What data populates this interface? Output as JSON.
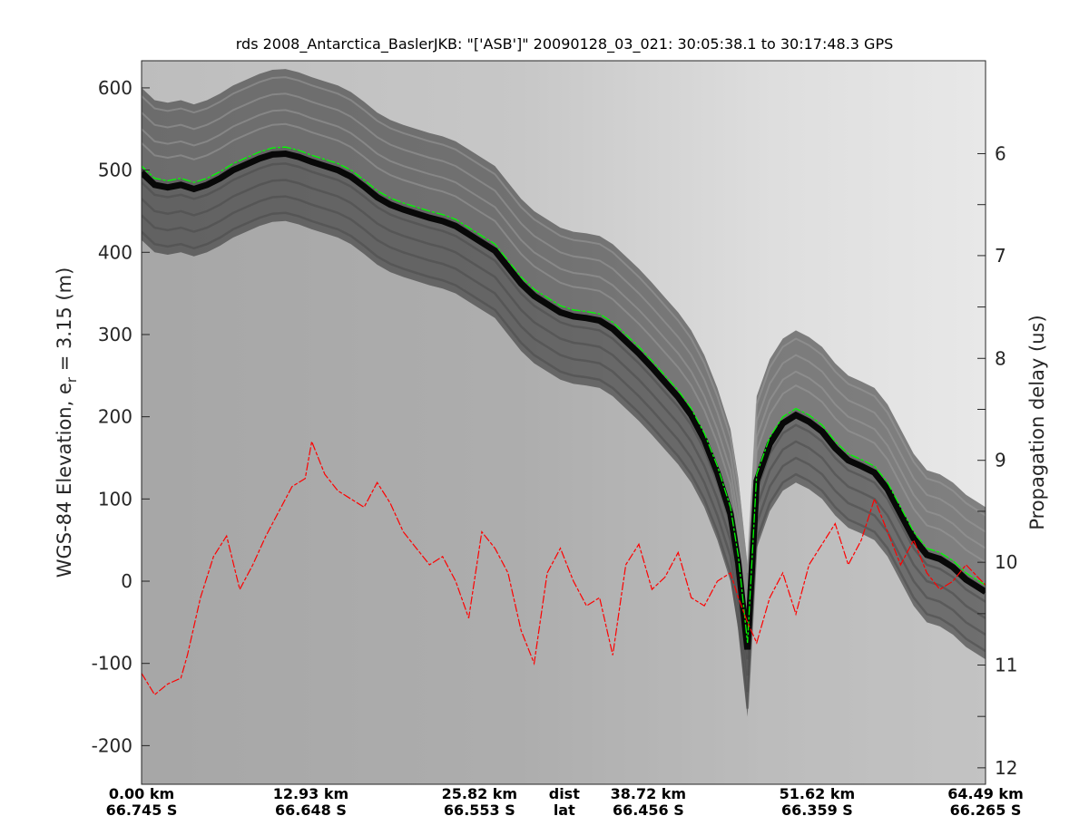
{
  "chart_data": {
    "type": "line",
    "title": "rds 2008_Antarctica_BaslerJKB: \"['ASB']\"  20090128_03_021: 30:05:38.1 to 30:17:48.3 GPS",
    "ylabel_left": "WGS-84 Elevation, e",
    "ylabel_left_sub": "r",
    "ylabel_left_tail": " = 3.15 (m)",
    "ylabel_right": "Propagation delay (us)",
    "xlim_km": [
      0,
      64.49
    ],
    "ylim": [
      -247,
      633
    ],
    "right_axis_ticks": [
      "6",
      "7",
      "8",
      "9",
      "10",
      "11",
      "12"
    ],
    "right_axis_elev": [
      520,
      396,
      271,
      147,
      23,
      -102,
      -227
    ],
    "left_axis_ticks": [
      600,
      500,
      400,
      300,
      200,
      100,
      0,
      -100,
      -200
    ],
    "bottom_ticks": [
      {
        "km": 0,
        "dist": "0.00 km",
        "lat": "66.745 S"
      },
      {
        "km": 12.93,
        "dist": "12.93 km",
        "lat": "66.648 S"
      },
      {
        "km": 25.82,
        "dist": "25.82 km",
        "lat": "66.553 S"
      },
      {
        "km": 38.72,
        "dist": "38.72 km",
        "lat": "66.456 S"
      },
      {
        "km": 51.62,
        "dist": "51.62 km",
        "lat": "66.359 S"
      },
      {
        "km": 64.49,
        "dist": "64.49 km",
        "lat": "66.265 S"
      }
    ],
    "bottom_row_labels": {
      "km": 32.3,
      "dist": "dist",
      "lat": "lat"
    },
    "colors": {
      "surface": "#00ff00",
      "bed": "#ff0000",
      "axes": "#262626"
    },
    "series": [
      {
        "id": "surface",
        "x": [
          0,
          1.0,
          2.0,
          3.0,
          4.0,
          5.0,
          6.0,
          7.0,
          8.0,
          9.0,
          10.0,
          11.0,
          12.0,
          13.0,
          14.0,
          15.0,
          16.0,
          17.0,
          18.0,
          19.0,
          20.0,
          21.0,
          22.0,
          23.0,
          24.0,
          25.0,
          26.0,
          27.0,
          28.0,
          29.0,
          30.0,
          31.0,
          32.0,
          33.0,
          34.0,
          35.0,
          36.0,
          37.0,
          38.0,
          39.0,
          40.0,
          41.0,
          42.0,
          43.0,
          44.0,
          45.0,
          45.6,
          46.3,
          47.0,
          48.0,
          49.0,
          50.0,
          51.0,
          52.0,
          53.0,
          54.0,
          55.0,
          56.0,
          57.0,
          58.0,
          59.0,
          60.0,
          61.0,
          62.0,
          63.0,
          64.49
        ],
        "y": [
          505,
          490,
          487,
          490,
          485,
          490,
          498,
          508,
          515,
          522,
          527,
          528,
          524,
          518,
          513,
          508,
          500,
          488,
          475,
          466,
          460,
          455,
          450,
          446,
          440,
          430,
          420,
          410,
          390,
          370,
          355,
          345,
          335,
          330,
          328,
          325,
          315,
          300,
          285,
          268,
          250,
          232,
          210,
          180,
          140,
          90,
          30,
          -75,
          130,
          175,
          200,
          210,
          202,
          190,
          170,
          155,
          148,
          140,
          120,
          90,
          60,
          40,
          35,
          25,
          10,
          -5
        ]
      },
      {
        "id": "bed",
        "x": [
          0,
          1.0,
          2.0,
          3.0,
          3.5,
          4.5,
          5.5,
          6.5,
          7.5,
          8.5,
          9.5,
          10.5,
          11.5,
          12.5,
          13.0,
          14.0,
          15.0,
          16.0,
          17.0,
          18.0,
          19.0,
          20.0,
          21.0,
          22.0,
          23.0,
          24.0,
          25.0,
          26.0,
          27.0,
          28.0,
          29.0,
          30.0,
          31.0,
          32.0,
          33.0,
          34.0,
          35.0,
          36.0,
          37.0,
          38.0,
          39.0,
          40.0,
          41.0,
          42.0,
          43.0,
          44.0,
          45.0,
          45.6,
          46.3,
          47.0,
          48.0,
          49.0,
          50.0,
          51.0,
          52.0,
          53.0,
          54.0,
          55.0,
          56.0,
          57.0,
          58.0,
          59.0,
          60.0,
          61.0,
          62.0,
          63.0,
          64.49
        ],
        "y": [
          -112,
          -138,
          -125,
          -118,
          -90,
          -20,
          30,
          55,
          -10,
          20,
          55,
          85,
          115,
          125,
          170,
          130,
          110,
          100,
          90,
          120,
          95,
          60,
          40,
          20,
          30,
          0,
          -45,
          60,
          40,
          10,
          -60,
          -100,
          10,
          40,
          0,
          -30,
          -20,
          -90,
          20,
          45,
          -10,
          5,
          35,
          -20,
          -30,
          0,
          10,
          -20,
          -50,
          -75,
          -20,
          10,
          -40,
          20,
          45,
          70,
          20,
          50,
          100,
          60,
          20,
          50,
          10,
          -10,
          0,
          20,
          -5
        ]
      }
    ]
  }
}
